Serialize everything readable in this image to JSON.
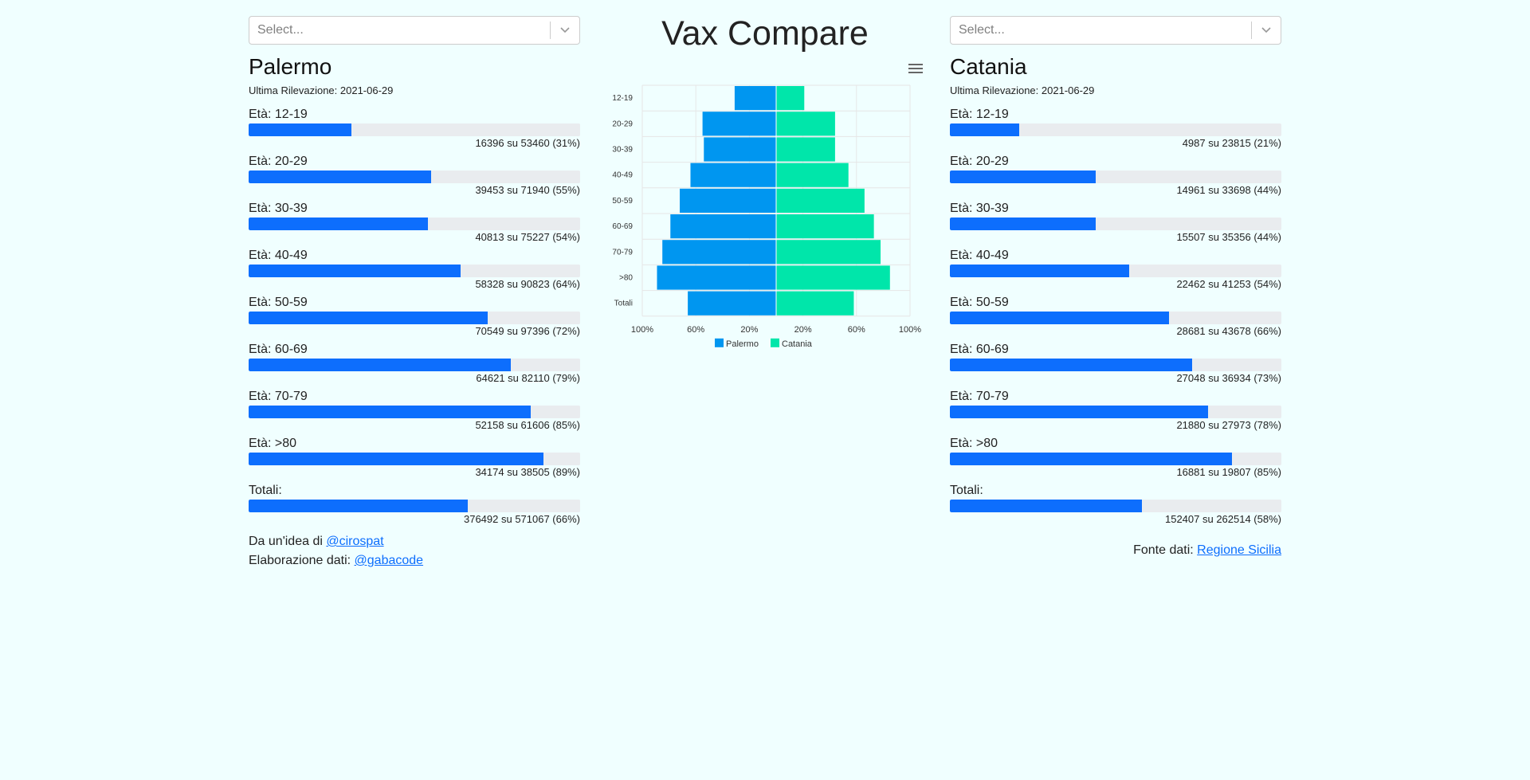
{
  "title": "Vax Compare",
  "select_placeholder": "Select...",
  "left": {
    "city": "Palermo",
    "last_label": "Ultima Rilevazione: 2021-06-29",
    "rows": [
      {
        "label": "Età: 12-19",
        "text": "16396 su 53460 (31%)",
        "pct": 31
      },
      {
        "label": "Età: 20-29",
        "text": "39453 su 71940 (55%)",
        "pct": 55
      },
      {
        "label": "Età: 30-39",
        "text": "40813 su 75227 (54%)",
        "pct": 54
      },
      {
        "label": "Età: 40-49",
        "text": "58328 su 90823 (64%)",
        "pct": 64
      },
      {
        "label": "Età: 50-59",
        "text": "70549 su 97396 (72%)",
        "pct": 72
      },
      {
        "label": "Età: 60-69",
        "text": "64621 su 82110 (79%)",
        "pct": 79
      },
      {
        "label": "Età: 70-79",
        "text": "52158 su 61606 (85%)",
        "pct": 85
      },
      {
        "label": "Età: >80",
        "text": "34174 su 38505 (89%)",
        "pct": 89
      },
      {
        "label": "Totali:",
        "text": "376492 su 571067 (66%)",
        "pct": 66
      }
    ],
    "credit1_prefix": "Da un'idea di ",
    "credit1_link": "@cirospat",
    "credit2_prefix": "Elaborazione dati: ",
    "credit2_link": "@gabacode"
  },
  "right": {
    "city": "Catania",
    "last_label": "Ultima Rilevazione: 2021-06-29",
    "rows": [
      {
        "label": "Età: 12-19",
        "text": "4987 su 23815 (21%)",
        "pct": 21
      },
      {
        "label": "Età: 20-29",
        "text": "14961 su 33698 (44%)",
        "pct": 44
      },
      {
        "label": "Età: 30-39",
        "text": "15507 su 35356 (44%)",
        "pct": 44
      },
      {
        "label": "Età: 40-49",
        "text": "22462 su 41253 (54%)",
        "pct": 54
      },
      {
        "label": "Età: 50-59",
        "text": "28681 su 43678 (66%)",
        "pct": 66
      },
      {
        "label": "Età: 60-69",
        "text": "27048 su 36934 (73%)",
        "pct": 73
      },
      {
        "label": "Età: 70-79",
        "text": "21880 su 27973 (78%)",
        "pct": 78
      },
      {
        "label": "Età: >80",
        "text": "16881 su 19807 (85%)",
        "pct": 85
      },
      {
        "label": "Totali:",
        "text": "152407 su 262514 (58%)",
        "pct": 58
      }
    ],
    "source_prefix": "Fonte dati: ",
    "source_link": "Regione Sicilia"
  },
  "colors": {
    "bar_fill": "#0d6efd",
    "track": "#e9ecef",
    "palermo": "#0096f0",
    "catania": "#00e6aa",
    "background": "#f0ffff"
  },
  "chart_data": {
    "type": "bar",
    "orientation": "horizontal-diverging",
    "categories": [
      "12-19",
      "20-29",
      "30-39",
      "40-49",
      "50-59",
      "60-69",
      "70-79",
      ">80",
      "Totali"
    ],
    "series": [
      {
        "name": "Palermo",
        "values": [
          31,
          55,
          54,
          64,
          72,
          79,
          85,
          89,
          66
        ]
      },
      {
        "name": "Catania",
        "values": [
          21,
          44,
          44,
          54,
          66,
          73,
          78,
          85,
          58
        ]
      }
    ],
    "xticks": [
      "100%",
      "60%",
      "20%",
      "20%",
      "60%",
      "100%"
    ],
    "xlim": [
      -100,
      100
    ],
    "grid": true,
    "legend": "bottom-center"
  }
}
